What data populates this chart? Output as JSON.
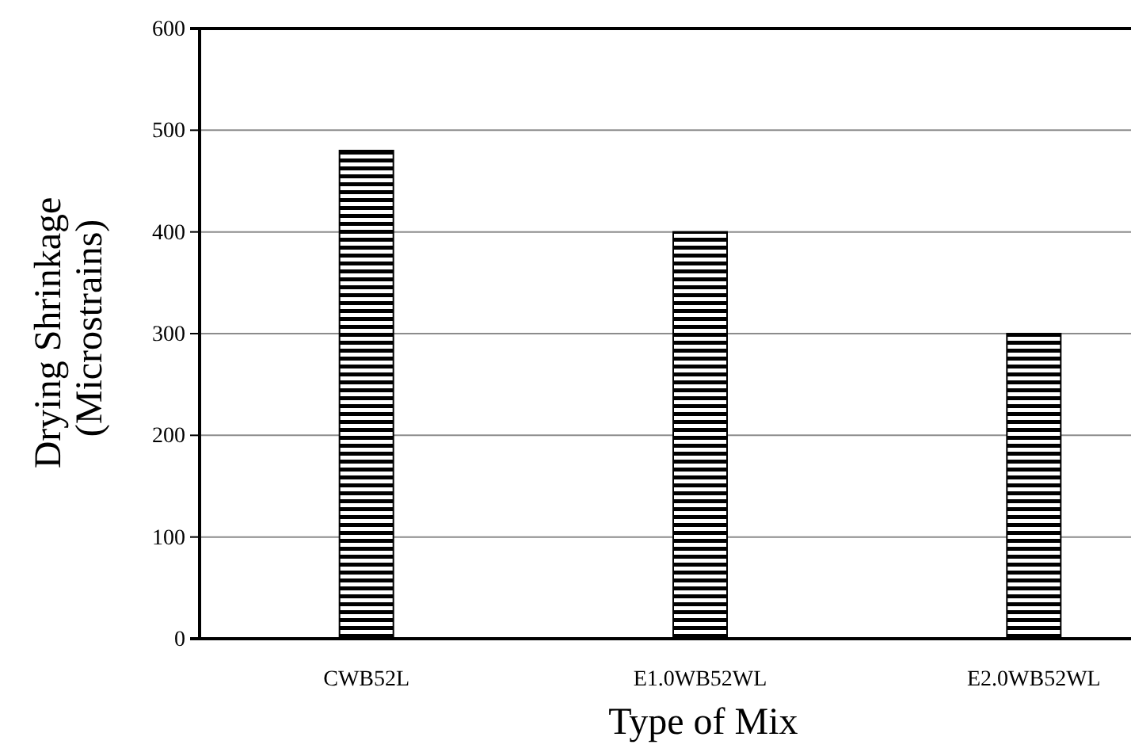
{
  "chart_data": {
    "type": "bar",
    "xlabel": "Type of Mix",
    "ylabel": "Drying Shrinkage (Microstrains)",
    "categories": [
      "CWB52L",
      "E1.0WB52WL",
      "E2.0WB52WL"
    ],
    "values": [
      480,
      400,
      300
    ],
    "color": "#000000",
    "ylim": [
      0,
      600
    ],
    "yticks": [
      0,
      100,
      200,
      300,
      400,
      500,
      600
    ],
    "grid": "y"
  }
}
